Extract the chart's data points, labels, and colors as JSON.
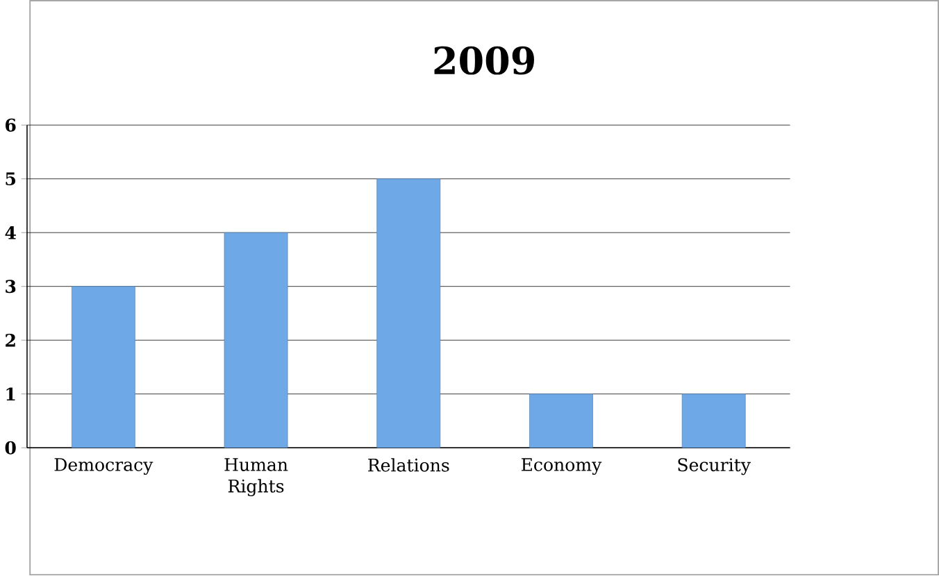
{
  "chart_data": {
    "type": "bar",
    "title": "2009",
    "categories": [
      "Democracy",
      "Human Rights",
      "Relations",
      "Economy",
      "Security"
    ],
    "values": [
      3,
      4,
      5,
      1,
      1
    ],
    "color": "#6fa8e6",
    "ylim": [
      0,
      6
    ],
    "yticks": [
      0,
      1,
      2,
      3,
      4,
      5,
      6
    ],
    "grid": "y"
  }
}
